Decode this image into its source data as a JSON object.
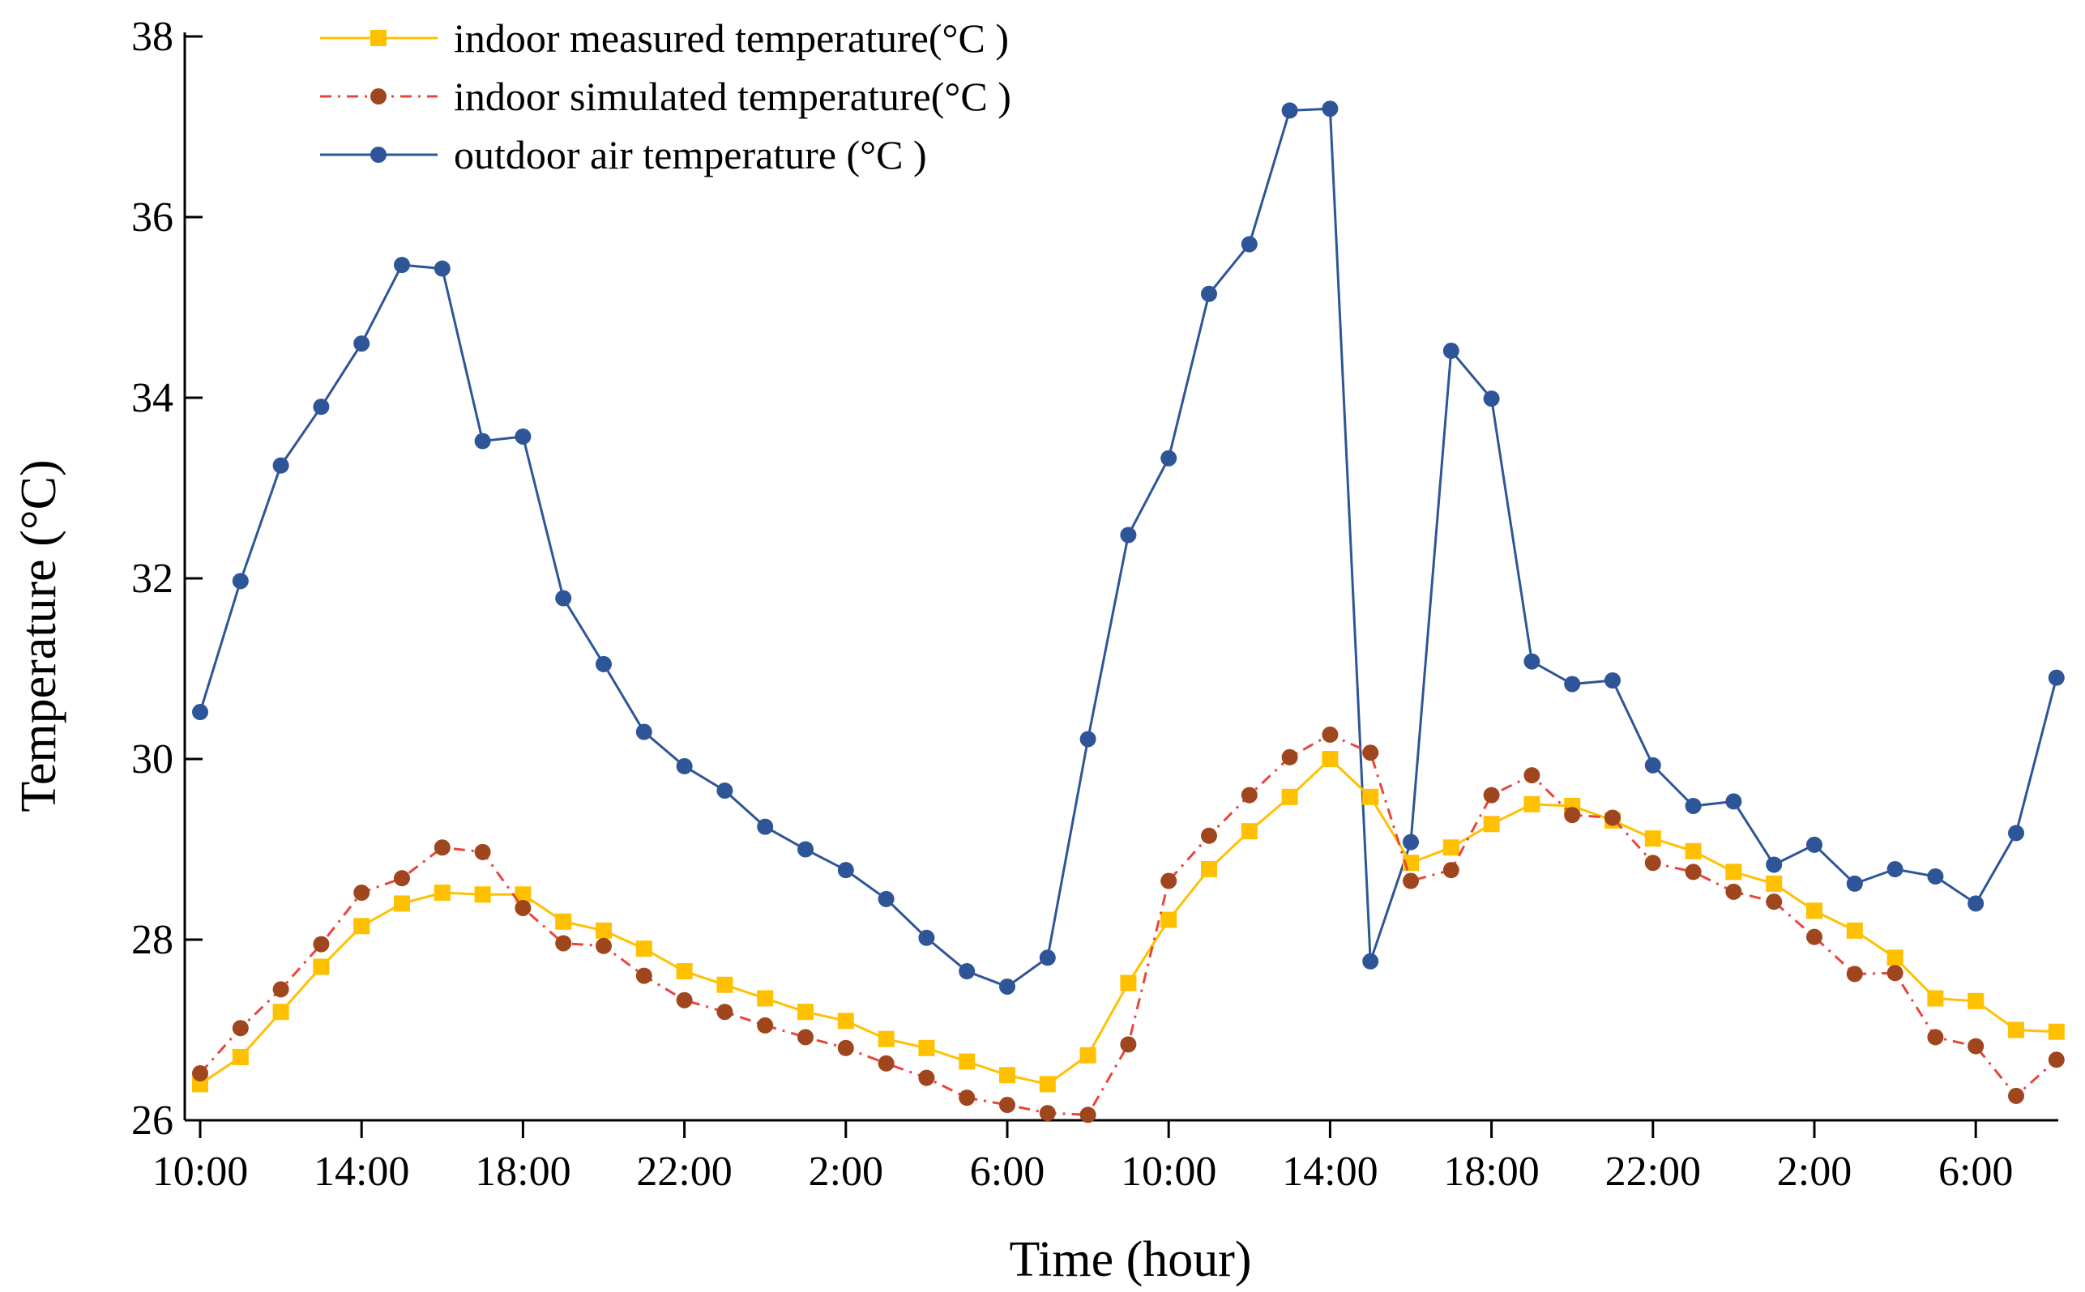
{
  "chart_data": {
    "type": "line",
    "title": "",
    "xlabel": "Time (hour)",
    "ylabel": "Temperature (°C)",
    "ylim": [
      26,
      38
    ],
    "yticks": [
      "26",
      "28",
      "30",
      "32",
      "34",
      "36",
      "38"
    ],
    "xtick_labels": [
      "10:00",
      "14:00",
      "18:00",
      "22:00",
      "2:00",
      "6:00",
      "10:00",
      "14:00",
      "18:00",
      "22:00",
      "2:00",
      "6:00"
    ],
    "xtick_hours": [
      0,
      4,
      8,
      12,
      16,
      20,
      24,
      28,
      32,
      36,
      40,
      44
    ],
    "x_hours_from_start": [
      0,
      1,
      2,
      3,
      4,
      5,
      6,
      7,
      8,
      9,
      10,
      11,
      12,
      13,
      14,
      15,
      16,
      17,
      18,
      19,
      20,
      21,
      22,
      23,
      24,
      25,
      26,
      27,
      28,
      29,
      30,
      31,
      32,
      33,
      34,
      35,
      36,
      37,
      38,
      39,
      40,
      41,
      42,
      43,
      44,
      45,
      46
    ],
    "grid": false,
    "legend_position": "top-left",
    "series": [
      {
        "name": "indoor measured temperature(°C )",
        "color": "#FFC000",
        "marker": "square",
        "line_style": "solid",
        "values": [
          26.4,
          26.7,
          27.2,
          27.7,
          28.15,
          28.4,
          28.52,
          28.5,
          28.5,
          28.2,
          28.1,
          27.9,
          27.65,
          27.5,
          27.35,
          27.2,
          27.1,
          26.9,
          26.8,
          26.65,
          26.5,
          26.4,
          26.72,
          27.52,
          28.22,
          28.78,
          29.2,
          29.58,
          30.0,
          29.58,
          28.85,
          29.02,
          29.28,
          29.5,
          29.48,
          29.32,
          29.12,
          28.98,
          28.75,
          28.62,
          28.32,
          28.1,
          27.8,
          27.35,
          27.32,
          27.0,
          26.98
        ]
      },
      {
        "name": "indoor simulated temperature(°C )",
        "color": "#A0461E",
        "line_color": "#E8463C",
        "marker": "circle",
        "line_style": "dash-dot",
        "values": [
          26.52,
          27.02,
          27.45,
          27.95,
          28.52,
          28.68,
          29.02,
          28.97,
          28.35,
          27.96,
          27.93,
          27.6,
          27.33,
          27.2,
          27.05,
          26.92,
          26.8,
          26.63,
          26.47,
          26.25,
          26.17,
          26.08,
          26.06,
          26.84,
          28.65,
          29.15,
          29.6,
          30.02,
          30.27,
          30.07,
          28.65,
          28.77,
          29.6,
          29.82,
          29.38,
          29.35,
          28.85,
          28.75,
          28.53,
          28.42,
          28.03,
          27.62,
          27.63,
          26.92,
          26.82,
          26.27,
          26.67
        ]
      },
      {
        "name": "outdoor air temperature (°C )",
        "color": "#2E5597",
        "marker": "circle",
        "line_style": "solid",
        "values": [
          30.52,
          31.97,
          33.25,
          33.9,
          34.6,
          35.47,
          35.43,
          33.52,
          33.57,
          31.78,
          31.05,
          30.3,
          29.92,
          29.65,
          29.25,
          29.0,
          28.77,
          28.45,
          28.02,
          27.65,
          27.48,
          27.8,
          30.22,
          32.48,
          33.33,
          35.15,
          35.7,
          37.18,
          37.2,
          27.76,
          29.08,
          34.52,
          33.99,
          31.08,
          30.83,
          30.87,
          29.93,
          29.48,
          29.53,
          28.83,
          29.05,
          28.62,
          28.78,
          28.7,
          28.4,
          29.18,
          30.9
        ]
      }
    ]
  }
}
